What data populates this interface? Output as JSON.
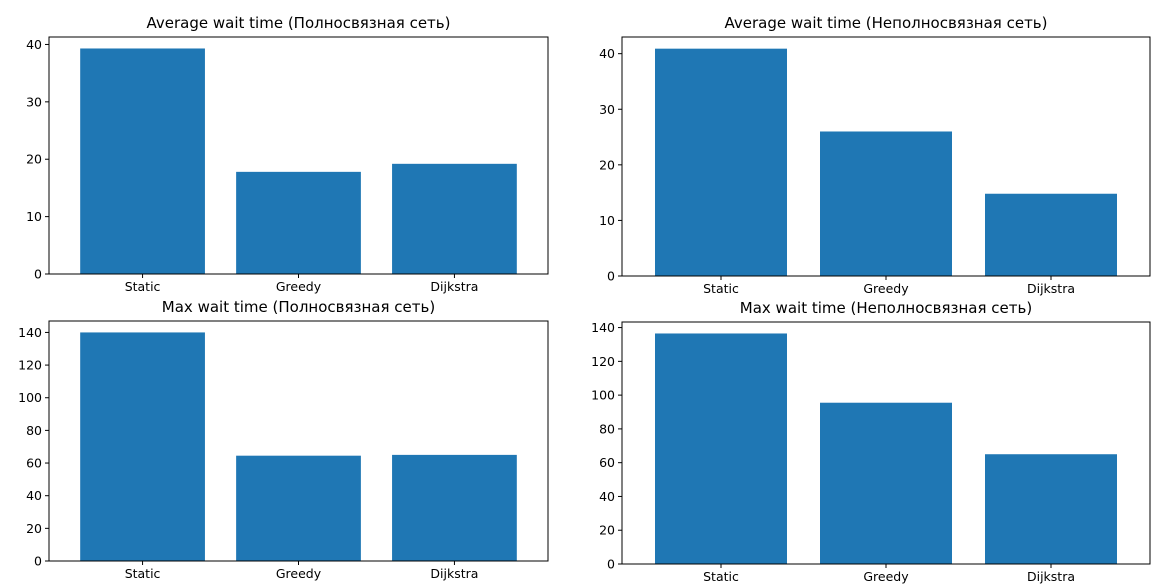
{
  "chart_data": [
    {
      "type": "bar",
      "title": "Average wait time (Полносвязная сеть)",
      "categories": [
        "Static",
        "Greedy",
        "Dijkstra"
      ],
      "values": [
        39.3,
        17.8,
        19.2
      ],
      "ylim": [
        0,
        41.3
      ],
      "yticks": [
        0,
        10,
        20,
        30,
        40
      ],
      "xlabel": "",
      "ylabel": "",
      "bar_color": "#1f77b4"
    },
    {
      "type": "bar",
      "title": "Average wait time (Неполносвязная сеть)",
      "categories": [
        "Static",
        "Greedy",
        "Dijkstra"
      ],
      "values": [
        40.9,
        26.0,
        14.8
      ],
      "ylim": [
        0,
        43.0
      ],
      "yticks": [
        0,
        10,
        20,
        30,
        40
      ],
      "xlabel": "",
      "ylabel": "",
      "bar_color": "#1f77b4"
    },
    {
      "type": "bar",
      "title": "Max wait time (Полносвязная сеть)",
      "categories": [
        "Static",
        "Greedy",
        "Dijkstra"
      ],
      "values": [
        140,
        64.5,
        65
      ],
      "ylim": [
        0,
        147
      ],
      "yticks": [
        0,
        20,
        40,
        60,
        80,
        100,
        120,
        140
      ],
      "xlabel": "",
      "ylabel": "",
      "bar_color": "#1f77b4"
    },
    {
      "type": "bar",
      "title": "Max wait time (Неполносвязная сеть)",
      "categories": [
        "Static",
        "Greedy",
        "Dijkstra"
      ],
      "values": [
        136.5,
        95.5,
        65
      ],
      "ylim": [
        0,
        143.3
      ],
      "yticks": [
        0,
        20,
        40,
        60,
        80,
        100,
        120,
        140
      ],
      "xlabel": "",
      "ylabel": "",
      "bar_color": "#1f77b4"
    }
  ]
}
